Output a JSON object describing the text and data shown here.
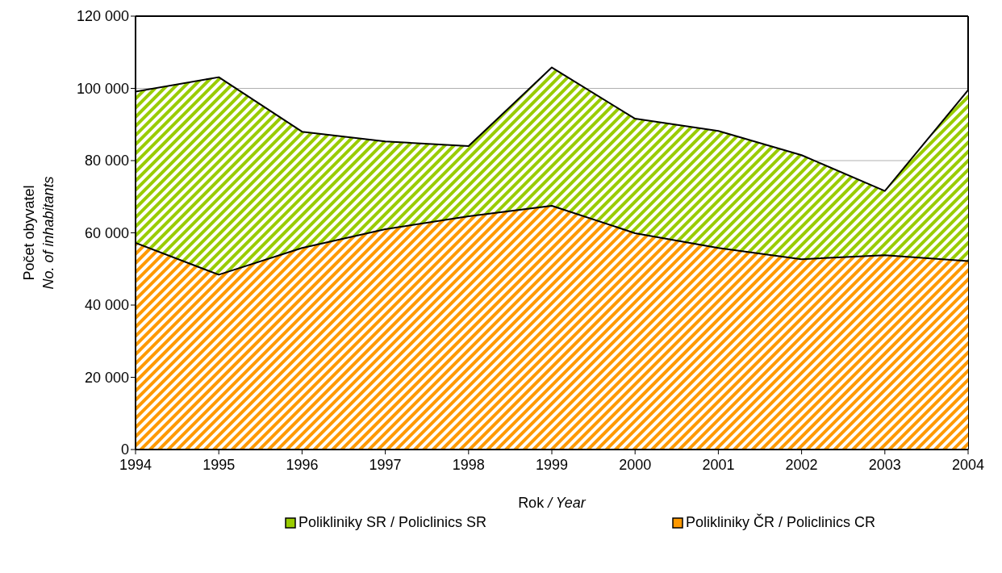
{
  "chart_data": {
    "type": "area",
    "xlabel": "Rok / Year",
    "ylabel": "Počet obyvatel\nNo. of inhabitants",
    "x": [
      1994,
      1995,
      1996,
      1997,
      1998,
      1999,
      2000,
      2001,
      2002,
      2003,
      2004
    ],
    "xlim": [
      1994,
      2004
    ],
    "xticks": [
      1994,
      1995,
      1996,
      1997,
      1998,
      1999,
      2000,
      2001,
      2002,
      2003,
      2004
    ],
    "ylim": [
      0,
      120000
    ],
    "yticks": [
      0,
      {
        "value": 20000,
        "label": "20 000"
      },
      {
        "value": 40000,
        "label": "40 000"
      },
      {
        "value": 60000,
        "label": "60 000"
      },
      {
        "value": 80000,
        "label": "80 000"
      },
      {
        "value": 100000,
        "label": "100 000"
      },
      {
        "value": 120000,
        "label": "120 000"
      }
    ],
    "grid": "y",
    "legend": "bottom",
    "series": [
      {
        "name": "Polikliniky SR / Policlinics SR",
        "color": "#99cc00",
        "values": [
          99100,
          103100,
          88000,
          85300,
          84000,
          105800,
          91600,
          88200,
          81500,
          71600,
          99500
        ]
      },
      {
        "name": "Polikliniky ČR / Policlinics CR",
        "color": "#ff9900",
        "values": [
          57200,
          48400,
          55800,
          61000,
          64600,
          67500,
          59900,
          55800,
          52700,
          53800,
          52200
        ]
      }
    ]
  }
}
